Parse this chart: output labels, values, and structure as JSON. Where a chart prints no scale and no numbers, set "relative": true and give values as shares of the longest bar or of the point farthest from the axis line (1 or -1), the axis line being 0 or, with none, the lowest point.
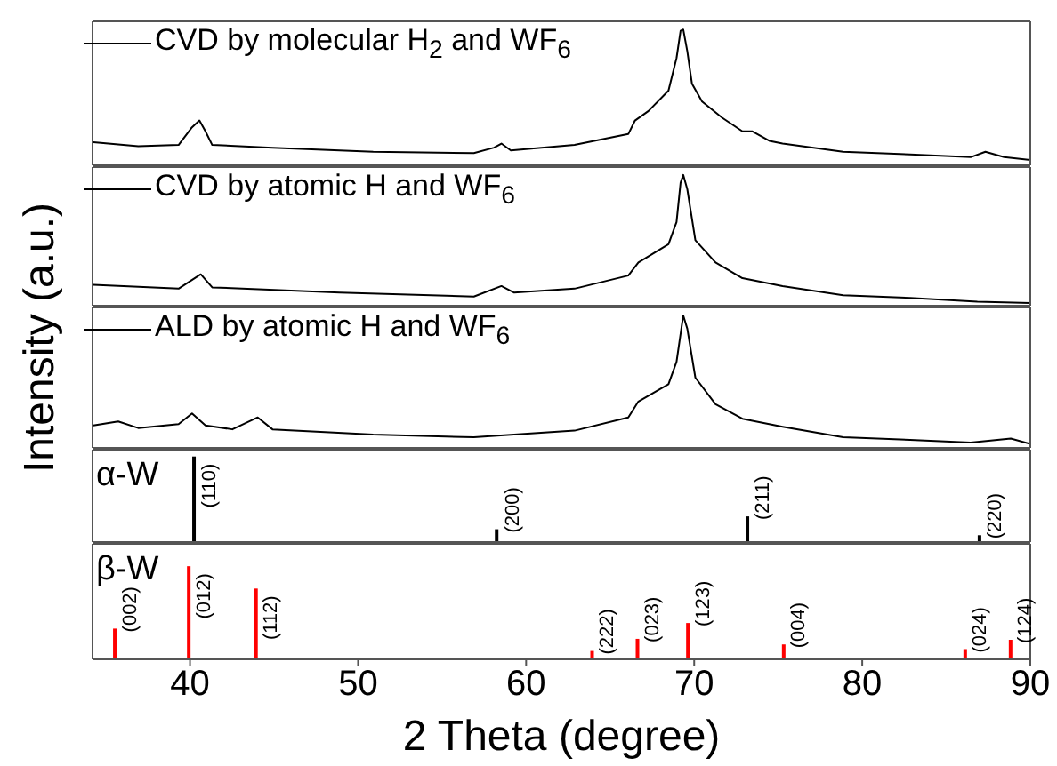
{
  "chart_data": [
    {
      "type": "line",
      "relative": true,
      "legend": "top left",
      "tick_labels": false,
      "xlim": [
        34.2,
        90
      ],
      "xticks": [
        40,
        50,
        60,
        70,
        80,
        90
      ],
      "x": [
        34.25,
        36.92,
        39.32,
        40.12,
        40.56,
        40.92,
        41.32,
        44.91,
        50.9,
        56.89,
        58.09,
        58.53,
        59.09,
        62.88,
        66.08,
        66.48,
        67.28,
        68.47,
        68.95,
        69.19,
        69.35,
        69.59,
        69.87,
        70.47,
        71.67,
        72.87,
        73.47,
        74.47,
        75.26,
        78.86,
        82.85,
        86.45,
        87.33,
        88.44,
        90
      ],
      "series": [
        {
          "name": "CVD by molecular H$_{2}$ and WF$_{6}$",
          "color": "#000000",
          "values": [
            0.17,
            0.14,
            0.15,
            0.28,
            0.33,
            0.25,
            0.15,
            0.13,
            0.1,
            0.09,
            0.13,
            0.16,
            0.11,
            0.15,
            0.23,
            0.33,
            0.4,
            0.55,
            0.79,
            0.99,
            1,
            0.84,
            0.6,
            0.47,
            0.35,
            0.25,
            0.25,
            0.18,
            0.16,
            0.1,
            0.08,
            0.06,
            0.1,
            0.06,
            0.04
          ]
        }
      ]
    },
    {
      "type": "line",
      "relative": true,
      "legend": "top left",
      "tick_labels": false,
      "xlim": [
        34.2,
        90
      ],
      "xticks": [
        40,
        50,
        60,
        70,
        80,
        90
      ],
      "x": [
        34.25,
        39.32,
        40.64,
        41.32,
        48.9,
        56.89,
        58.53,
        59.29,
        62.88,
        66.08,
        66.68,
        68.47,
        68.95,
        69.19,
        69.35,
        69.59,
        70.07,
        71.27,
        72.87,
        75.26,
        78.86,
        82.85,
        86.85,
        90
      ],
      "series": [
        {
          "name": "CVD by atomic H and WF$_{6}$",
          "color": "#000000",
          "values": [
            0.16,
            0.13,
            0.24,
            0.14,
            0.1,
            0.07,
            0.15,
            0.1,
            0.13,
            0.23,
            0.33,
            0.47,
            0.64,
            0.94,
            1,
            0.89,
            0.5,
            0.33,
            0.21,
            0.15,
            0.08,
            0.06,
            0.03,
            0.02
          ]
        }
      ]
    },
    {
      "type": "line",
      "relative": true,
      "legend": "top left",
      "tick_labels": false,
      "ylabel": "Intensity (a.u.)",
      "xlim": [
        34.2,
        90
      ],
      "xticks": [
        40,
        50,
        60,
        70,
        80,
        90
      ],
      "x": [
        34.25,
        35.73,
        36.92,
        39.32,
        40.12,
        40.92,
        42.52,
        44.03,
        44.91,
        50.9,
        56.89,
        62.88,
        66.08,
        66.68,
        68.47,
        68.95,
        69.35,
        69.59,
        70.07,
        71.27,
        72.87,
        75.26,
        78.86,
        82.85,
        86.45,
        88.84,
        90
      ],
      "series": [
        {
          "name": "ALD by atomic H and WF$_{6}$",
          "color": "#000000",
          "values": [
            0.17,
            0.2,
            0.15,
            0.18,
            0.26,
            0.17,
            0.14,
            0.23,
            0.14,
            0.1,
            0.08,
            0.13,
            0.23,
            0.35,
            0.48,
            0.65,
            1,
            0.9,
            0.53,
            0.33,
            0.22,
            0.16,
            0.08,
            0.06,
            0.04,
            0.07,
            0.03
          ]
        }
      ]
    },
    {
      "type": "bar",
      "relative": true,
      "tick_labels": false,
      "xlim": [
        34.2,
        90
      ],
      "xticks": [
        40,
        50,
        60,
        70,
        80,
        90
      ],
      "x": [
        40.26,
        58.27,
        73.19,
        87.0
      ],
      "series": [
        {
          "name": "α-W",
          "color": "#000000",
          "values": [
            1,
            0.15,
            0.3,
            0.08
          ]
        }
      ],
      "annotations": [
        {
          "text": "(110)",
          "x": 40.26,
          "y": 1
        },
        {
          "text": "(200)",
          "x": 58.27,
          "y": 0.15
        },
        {
          "text": "(211)",
          "x": 73.19,
          "y": 0.3
        },
        {
          "text": "(220)",
          "x": 87.0,
          "y": 0.08
        }
      ]
    },
    {
      "type": "bar",
      "relative": true,
      "tick_labels": "x",
      "xlabel": "2 Theta (degree)",
      "xlim": [
        34.2,
        90
      ],
      "xticks": [
        40,
        50,
        60,
        70,
        80,
        90
      ],
      "x": [
        35.5,
        39.9,
        43.9,
        63.9,
        66.6,
        69.6,
        75.3,
        86.1,
        88.8
      ],
      "series": [
        {
          "name": "β-W",
          "color": "#ff0000",
          "values": [
            0.33,
            1,
            0.76,
            0.09,
            0.22,
            0.39,
            0.16,
            0.11,
            0.21
          ]
        }
      ],
      "annotations": [
        {
          "text": "(002)",
          "x": 35.5,
          "y": 0.33
        },
        {
          "text": "(012)",
          "x": 39.9,
          "y": 1
        },
        {
          "text": "(112)",
          "x": 43.9,
          "y": 0.76
        },
        {
          "text": "(222)",
          "x": 63.9,
          "y": 0.09
        },
        {
          "text": "(023)",
          "x": 66.6,
          "y": 0.22
        },
        {
          "text": "(123)",
          "x": 69.6,
          "y": 0.39
        },
        {
          "text": "(004)",
          "x": 75.3,
          "y": 0.16
        },
        {
          "text": "(024)",
          "x": 86.1,
          "y": 0.11
        },
        {
          "text": "(124)",
          "x": 88.8,
          "y": 0.21
        }
      ]
    }
  ]
}
